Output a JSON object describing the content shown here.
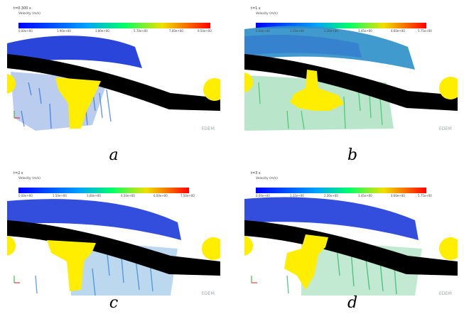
{
  "panels": [
    {
      "id": "a",
      "time_label": "t=0.300 s",
      "velocity_label": "Velocity (m/s)",
      "ticks": [
        "0.00e+00",
        "1.90e+00",
        "3.80e+00",
        "5.70e+00",
        "7.60e+00",
        "9.50e+00"
      ],
      "brand": "EDEM",
      "caption": "a"
    },
    {
      "id": "b",
      "time_label": "t=1 s",
      "velocity_label": "Velocity (m/s)",
      "ticks": [
        "0.00e+00",
        "1.15e+00",
        "2.30e+00",
        "3.45e+00",
        "4.60e+00",
        "5.75e+00"
      ],
      "brand": "EDEM",
      "caption": "b"
    },
    {
      "id": "c",
      "time_label": "t=2 s",
      "velocity_label": "Velocity (m/s)",
      "ticks": [
        "0.00e+00",
        "1.50e+00",
        "3.00e+00",
        "4.50e+00",
        "6.00e+00",
        "7.50e+00"
      ],
      "brand": "EDEM",
      "caption": "c"
    },
    {
      "id": "d",
      "time_label": "t=3 s",
      "velocity_label": "Velocity (m/s)",
      "ticks": [
        "0.00e+00",
        "1.15e+00",
        "2.30e+00",
        "3.45e+00",
        "4.60e+00",
        "5.75e+00"
      ],
      "brand": "EDEM",
      "caption": "d"
    }
  ],
  "colors": {
    "particles_fast": "#1d3bd8",
    "particles_mid": "#3b8fd0",
    "particles_slow": "#33c26a",
    "belt": "#000000",
    "roller": "#ffee00",
    "colorbar_start": "#0000ff",
    "colorbar_mid": "#00ff66",
    "colorbar_end": "#ff0000"
  }
}
